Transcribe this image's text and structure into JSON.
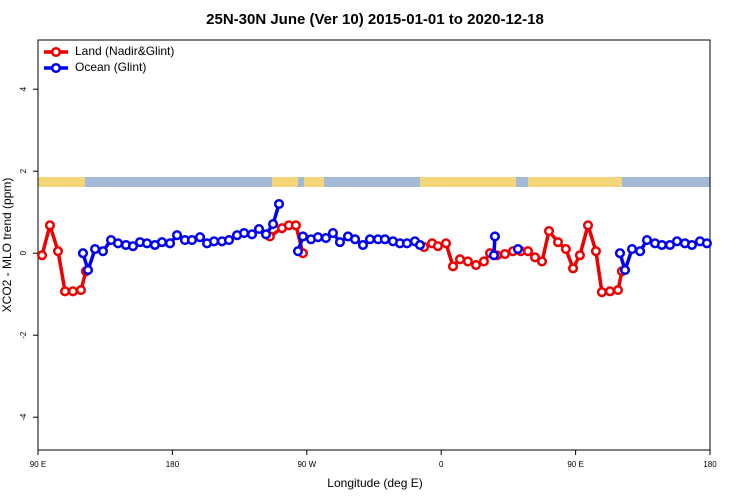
{
  "chart_data": {
    "type": "line",
    "title": "25N-30N June (Ver 10)   2015-01-01 to 2020-12-18",
    "xlabel": "Longitude (deg E)",
    "ylabel": "XCO2 - MLO trend (ppm)",
    "xlim": [
      90,
      540
    ],
    "ylim": [
      -4.8,
      5.2
    ],
    "xticks": [
      {
        "value": 90,
        "label": "90 E"
      },
      180,
      {
        "value": 270,
        "label": "90 W"
      },
      {
        "value": 360,
        "label": "0"
      },
      {
        "value": 450,
        "label": "90 E"
      },
      {
        "value": 540,
        "label": "180"
      }
    ],
    "yticks": [
      4,
      2,
      0,
      -2,
      -4
    ],
    "legend": "top-left",
    "series": [
      {
        "name": "Land (Nadir&Glint)",
        "color": "#ee0000",
        "x": [
          92.7,
          98.0,
          103.4,
          108.1,
          113.4,
          118.8,
          122.1,
          130,
          245.3,
          253.4,
          258.0,
          262.7,
          267.4,
          300,
          348.5,
          353.9,
          357.8,
          363.2,
          367.9,
          372.6,
          377.9,
          383.3,
          388.6,
          392.7,
          397.3,
          402.7,
          408.1,
          413.4,
          418.1,
          422.8,
          427.5,
          432.2,
          438.2,
          443.5,
          448.3,
          452.9,
          458.3,
          463.6,
          467.6,
          473.0,
          478.4,
          481.0
        ],
        "values": [
          -0.05,
          0.68,
          0.05,
          -0.93,
          -0.93,
          -0.9,
          -0.44,
          null,
          0.41,
          0.61,
          0.68,
          0.68,
          0,
          null,
          0.15,
          0.24,
          0.17,
          0.24,
          -0.32,
          -0.15,
          -0.2,
          -0.29,
          -0.2,
          0,
          -0.05,
          -0.02,
          0.05,
          0.05,
          0.05,
          -0.1,
          -0.2,
          0.54,
          0.27,
          0.1,
          -0.37,
          -0.05,
          0.68,
          0.05,
          -0.95,
          -0.93,
          -0.9,
          -0.44
        ]
      },
      {
        "name": "Ocean (Glint)",
        "color": "#0000ee",
        "x": [
          120.1,
          123.5,
          128.2,
          133.5,
          138.9,
          143.6,
          148.9,
          153.6,
          158.3,
          163.0,
          168.3,
          173.0,
          178.4,
          183.1,
          188.4,
          193.1,
          198.5,
          203.2,
          207.9,
          213.2,
          217.9,
          223.3,
          228.0,
          233.3,
          238.0,
          242.7,
          247.4,
          251.4,
          258,
          264.1,
          267.4,
          272.8,
          277.5,
          282.8,
          287.5,
          292.2,
          297.6,
          302.3,
          307.6,
          312.3,
          317.7,
          322.3,
          327.7,
          332.4,
          337.1,
          342.4,
          345.8,
          370,
          395.3,
          396.0,
          405,
          411.4,
          450,
          479.7,
          483.1,
          487.8,
          493.2,
          497.8,
          503.2,
          507.8,
          513.2,
          517.9,
          523.2,
          527.9,
          533.3,
          537.9
        ],
        "values": [
          0,
          -0.41,
          0.1,
          0.05,
          0.32,
          0.24,
          0.2,
          0.17,
          0.27,
          0.24,
          0.2,
          0.27,
          0.24,
          0.44,
          0.32,
          0.32,
          0.39,
          0.24,
          0.29,
          0.29,
          0.32,
          0.44,
          0.49,
          0.46,
          0.59,
          0.46,
          0.71,
          1.2,
          null,
          0.05,
          0.41,
          0.34,
          0.39,
          0.37,
          0.49,
          0.27,
          0.41,
          0.34,
          0.2,
          0.34,
          0.34,
          0.34,
          0.29,
          0.24,
          0.24,
          0.29,
          0.2,
          null,
          -0.05,
          0.41,
          null,
          0.1,
          null,
          0,
          -0.41,
          0.1,
          0.05,
          0.32,
          0.24,
          0.2,
          0.2,
          0.29,
          0.24,
          0.2,
          0.29,
          0.24
        ]
      }
    ]
  }
}
